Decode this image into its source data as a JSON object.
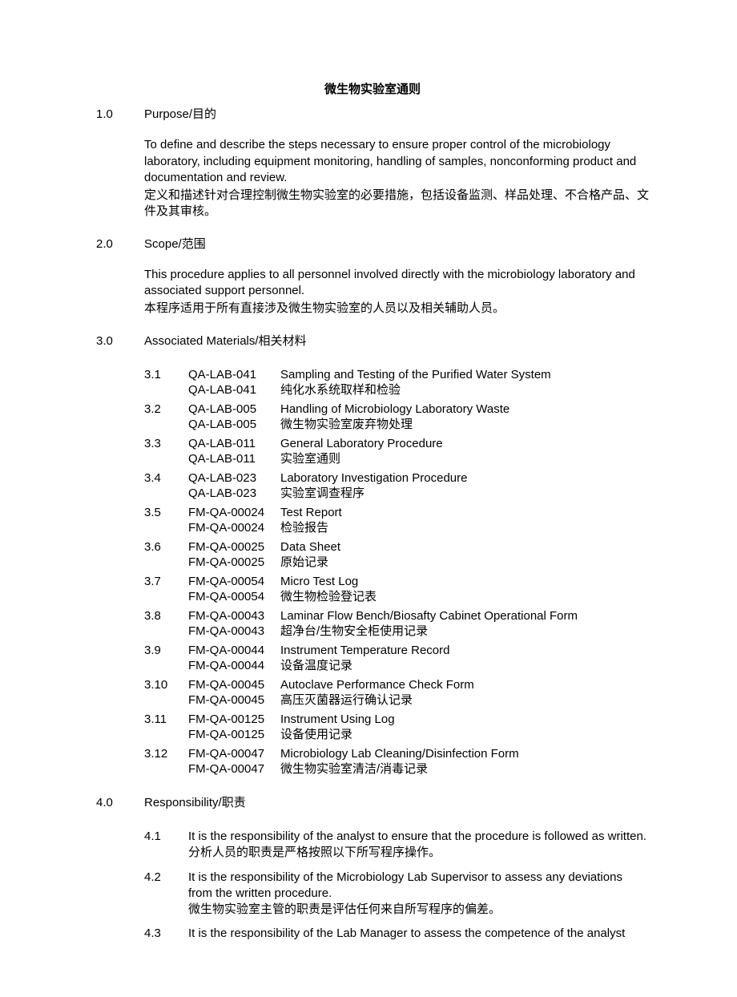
{
  "title": "微生物实验室通则",
  "sections": {
    "s1": {
      "num": "1.0",
      "heading": "Purpose/目的",
      "body_en": "To define and describe the steps necessary to ensure proper control of the microbiology laboratory, including equipment monitoring, handling of samples, nonconforming product and documentation and review.",
      "body_cn": "定义和描述针对合理控制微生物实验室的必要措施，包括设备监测、样品处理、不合格产品、文件及其审核。"
    },
    "s2": {
      "num": "2.0",
      "heading": "Scope/范围",
      "body_en": "This procedure applies to all personnel involved directly with the microbiology laboratory and associated support personnel.",
      "body_cn": "本程序适用于所有直接涉及微生物实验室的人员以及相关辅助人员。"
    },
    "s3": {
      "num": "3.0",
      "heading": "Associated Materials/相关材料",
      "items": [
        {
          "num": "3.1",
          "code": "QA-LAB-041",
          "desc_en": "Sampling and Testing of the Purified Water System",
          "code2": "QA-LAB-041",
          "desc_cn": "纯化水系统取样和检验"
        },
        {
          "num": "3.2",
          "code": "QA-LAB-005",
          "desc_en": "Handling of Microbiology Laboratory Waste",
          "code2": "QA-LAB-005",
          "desc_cn": "微生物实验室废弃物处理"
        },
        {
          "num": "3.3",
          "code": "QA-LAB-011",
          "desc_en": "General Laboratory Procedure",
          "code2": "QA-LAB-011",
          "desc_cn": "实验室通则"
        },
        {
          "num": "3.4",
          "code": "QA-LAB-023",
          "desc_en": "Laboratory Investigation Procedure",
          "code2": "QA-LAB-023",
          "desc_cn": "实验室调查程序"
        },
        {
          "num": "3.5",
          "code": "FM-QA-00024",
          "desc_en": "Test Report",
          "code2": "FM-QA-00024",
          "desc_cn": "检验报告"
        },
        {
          "num": "3.6",
          "code": "FM-QA-00025",
          "desc_en": "Data Sheet",
          "code2": "FM-QA-00025",
          "desc_cn": "原始记录"
        },
        {
          "num": "3.7",
          "code": "FM-QA-00054",
          "desc_en": "Micro Test Log",
          "code2": "FM-QA-00054",
          "desc_cn": "微生物检验登记表"
        },
        {
          "num": "3.8",
          "code": "FM-QA-00043",
          "desc_en": "Laminar Flow Bench/Biosafty Cabinet Operational Form",
          "code2": "FM-QA-00043",
          "desc_cn": "超净台/生物安全柜使用记录"
        },
        {
          "num": "3.9",
          "code": "FM-QA-00044",
          "desc_en": "Instrument Temperature Record",
          "code2": "FM-QA-00044",
          "desc_cn": "设备温度记录"
        },
        {
          "num": "3.10",
          "code": "FM-QA-00045",
          "desc_en": "Autoclave Performance Check Form",
          "code2": "FM-QA-00045",
          "desc_cn": "高压灭菌器运行确认记录"
        },
        {
          "num": "3.11",
          "code": "FM-QA-00125",
          "desc_en": "Instrument Using Log",
          "code2": "FM-QA-00125",
          "desc_cn": "设备使用记录"
        },
        {
          "num": "3.12",
          "code": "FM-QA-00047",
          "desc_en": "Microbiology Lab Cleaning/Disinfection Form",
          "code2": "FM-QA-00047",
          "desc_cn": "微生物实验室清洁/消毒记录"
        }
      ]
    },
    "s4": {
      "num": "4.0",
      "heading": "Responsibility/职责",
      "items": [
        {
          "num": "4.1",
          "en": "It is the responsibility of the analyst to ensure that the procedure is followed as written.",
          "cn": "分析人员的职责是严格按照以下所写程序操作。"
        },
        {
          "num": "4.2",
          "en": "It is the responsibility of the Microbiology Lab Supervisor to assess any deviations from the written procedure.",
          "cn": "微生物实验室主管的职责是评估任何来自所写程序的偏差。"
        },
        {
          "num": "4.3",
          "en": "It is the responsibility of the Lab Manager to assess the competence of the analyst",
          "cn": ""
        }
      ]
    }
  }
}
